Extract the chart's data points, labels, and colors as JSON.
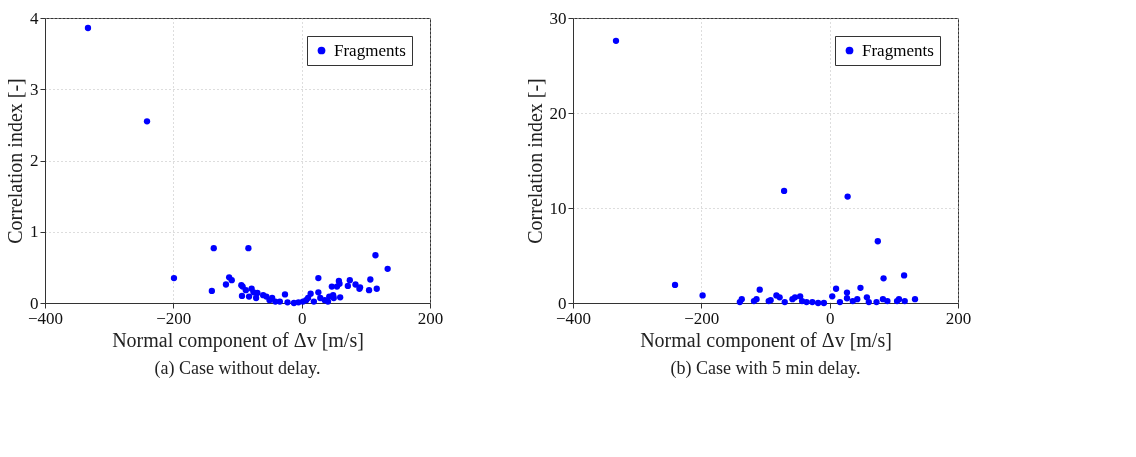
{
  "chart_data": [
    {
      "type": "scatter",
      "title": "(a) Case without delay.",
      "xlabel": "Normal component of Δv [m/s]",
      "ylabel": "Correlation index [-]",
      "xlim": [
        -400,
        200
      ],
      "xticks": [
        -400,
        -200,
        0,
        200
      ],
      "ylim": [
        0,
        4
      ],
      "yticks": [
        0,
        1,
        2,
        3,
        4
      ],
      "grid": true,
      "legend": "top right",
      "marker": "circle",
      "series": [
        {
          "name": "Fragments",
          "color": "#0000ff",
          "x": [
            -333,
            -241,
            -199,
            -140,
            -137,
            -83,
            -118,
            -113,
            -109,
            -94,
            -92,
            -93,
            -87,
            -82,
            -78,
            -75,
            -71,
            -69,
            -60,
            -55,
            -50,
            -46,
            -41,
            -26,
            -34,
            -22,
            -12,
            -5,
            2,
            7,
            14,
            10,
            19,
            26,
            26,
            29,
            36,
            41,
            43,
            47,
            49,
            50,
            55,
            58,
            59,
            60,
            72,
            75,
            84,
            90,
            91,
            105,
            107,
            115,
            117,
            134
          ],
          "values": [
            3.86,
            2.55,
            0.35,
            0.17,
            0.77,
            0.77,
            0.26,
            0.36,
            0.32,
            0.25,
            0.23,
            0.1,
            0.18,
            0.09,
            0.2,
            0.15,
            0.07,
            0.14,
            0.11,
            0.09,
            0.04,
            0.07,
            0.02,
            0.12,
            0.02,
            0.01,
            0.0,
            0.01,
            0.02,
            0.04,
            0.13,
            0.07,
            0.02,
            0.35,
            0.15,
            0.07,
            0.04,
            0.02,
            0.09,
            0.23,
            0.11,
            0.07,
            0.23,
            0.31,
            0.27,
            0.08,
            0.24,
            0.32,
            0.26,
            0.2,
            0.22,
            0.18,
            0.33,
            0.67,
            0.2,
            0.48
          ]
        }
      ]
    },
    {
      "type": "scatter",
      "title": "(b) Case with 5 min delay.",
      "xlabel": "Normal component of Δv [m/s]",
      "ylabel": "Correlation index [-]",
      "xlim": [
        -400,
        200
      ],
      "xticks": [
        -400,
        -200,
        0,
        200
      ],
      "ylim": [
        0,
        30
      ],
      "yticks": [
        0,
        10,
        20,
        30
      ],
      "grid": true,
      "legend": "top right",
      "marker": "circle",
      "series": [
        {
          "name": "Fragments",
          "color": "#0000ff",
          "x": [
            -333,
            -241,
            -198,
            -140,
            -137,
            -118,
            -114,
            -109,
            -95,
            -92,
            -83,
            -78,
            -71,
            -70,
            -58,
            -54,
            -46,
            -43,
            -36,
            -27,
            -18,
            -9,
            4,
            10,
            16,
            27,
            27,
            28,
            36,
            43,
            48,
            58,
            61,
            73,
            75,
            83,
            84,
            90,
            105,
            108,
            116,
            117,
            133
          ],
          "values": [
            27.6,
            1.9,
            0.8,
            0.1,
            0.4,
            0.2,
            0.4,
            1.4,
            0.2,
            0.3,
            0.8,
            0.6,
            11.8,
            0.1,
            0.4,
            0.6,
            0.7,
            0.2,
            0.1,
            0.1,
            0.0,
            0.0,
            0.7,
            1.5,
            0.1,
            0.5,
            1.1,
            11.2,
            0.2,
            0.4,
            1.6,
            0.6,
            0.1,
            0.1,
            6.5,
            0.4,
            2.6,
            0.2,
            0.2,
            0.4,
            2.9,
            0.2,
            0.4
          ]
        }
      ]
    }
  ]
}
